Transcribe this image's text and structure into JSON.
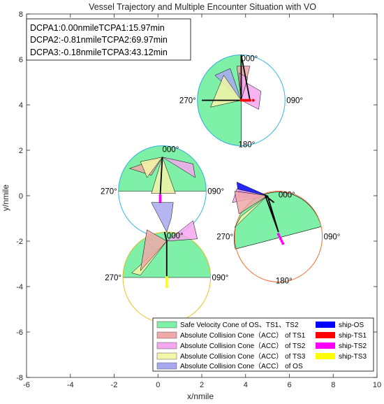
{
  "chart_data": {
    "type": "scatter",
    "title": "Vessel Trajectory and Multiple Encounter Situation with VO",
    "xlabel": "x/nmile",
    "ylabel": "y/nmile",
    "xlim": [
      -6,
      10
    ],
    "ylim": [
      -8,
      8
    ],
    "xticks": [
      -6,
      -4,
      -2,
      0,
      2,
      4,
      6,
      8,
      10
    ],
    "yticks": [
      -8,
      -6,
      -4,
      -2,
      0,
      2,
      4,
      6,
      8
    ],
    "grid": false,
    "legend_position": "bottom-right",
    "annotations": [
      "DCPA1:0.00nmileTCPA1:15.97min",
      "DCPA2:-0.81nmileTCPA2:69.97min",
      "DCPA3:-0.18nmileTCPA3:43.12min"
    ],
    "heading_labels": [
      "000°",
      "090°",
      "180°",
      "270°"
    ],
    "legend": [
      {
        "label": "Safe Velocity Cone of OS、TS1、TS2",
        "color": "#7ef0a8"
      },
      {
        "label": "Absolute Collision Cone（ACC） of TS1",
        "color": "#f0a8a8"
      },
      {
        "label": "Absolute Collision Cone（ACC） of TS2",
        "color": "#f5a8f0"
      },
      {
        "label": "Absolute Collision Cone（ACC） of TS3",
        "color": "#f5f5a8"
      },
      {
        "label": "Absolute Collision Cone（ACC） of OS",
        "color": "#a8a8f0"
      },
      {
        "label": "ship-OS",
        "color": "#0000ff"
      },
      {
        "label": "ship-TS1",
        "color": "#ff0000"
      },
      {
        "label": "ship-TS2",
        "color": "#ff00ff"
      },
      {
        "label": "ship-TS3",
        "color": "#ffff00"
      }
    ],
    "encounters": [
      {
        "name": "top",
        "center": [
          3.8,
          4.2
        ],
        "radius": 2.0,
        "ring_color": "#33b5e5",
        "safe_half": "left",
        "cones": [
          {
            "color": "#a8a8f0",
            "points": [
              [
                3.8,
                4.2
              ],
              [
                2.6,
                5.3
              ],
              [
                3.3,
                5.6
              ]
            ]
          },
          {
            "color": "#f5a8f0",
            "points": [
              [
                3.8,
                4.2
              ],
              [
                3.8,
                5.1
              ],
              [
                4.7,
                4.6
              ],
              [
                4.6,
                3.8
              ]
            ]
          },
          {
            "color": "#f5f5a8",
            "points": [
              [
                3.8,
                4.2
              ],
              [
                3.0,
                5.3
              ],
              [
                2.4,
                3.9
              ]
            ]
          },
          {
            "color": "#f0a8a8",
            "points": [
              [
                3.8,
                4.2
              ],
              [
                4.2,
                5.7
              ],
              [
                3.6,
                5.7
              ]
            ]
          },
          {
            "color": "#f5a8f0",
            "points": [
              [
                3.8,
                4.2
              ],
              [
                4.1,
                5.2
              ],
              [
                3.7,
                5.4
              ]
            ]
          }
        ],
        "ship_points": {
          "x": [
            3.8,
            3.9,
            4.0,
            4.1,
            4.2,
            4.35
          ],
          "y": [
            4.2,
            4.2,
            4.2,
            4.2,
            4.2,
            4.2
          ],
          "color": "#ff0000"
        },
        "track": {
          "x": [
            2.0,
            3.8,
            3.8,
            4.2
          ],
          "y": [
            4.2,
            4.2,
            6.2,
            4.2
          ]
        }
      },
      {
        "name": "middle-left",
        "center": [
          0.2,
          0.2
        ],
        "radius": 2.0,
        "ring_color": "#33b5e5",
        "safe_half": "top",
        "cones": [
          {
            "color": "#f0a8a8",
            "points": [
              [
                0.2,
                1.7
              ],
              [
                -1.3,
                1.2
              ],
              [
                -0.3,
                0.9
              ]
            ]
          },
          {
            "color": "#f5a8f0",
            "points": [
              [
                0.2,
                1.7
              ],
              [
                1.7,
                0.8
              ],
              [
                1.6,
                1.4
              ]
            ]
          },
          {
            "color": "#f5f5a8",
            "points": [
              [
                0.2,
                1.7
              ],
              [
                -0.3,
                0.1
              ],
              [
                0.8,
                0.1
              ]
            ]
          },
          {
            "color": "#f5f5a8",
            "points": [
              [
                0.2,
                1.7
              ],
              [
                -0.8,
                1.5
              ],
              [
                -0.5,
                0.8
              ]
            ]
          }
        ],
        "ship_points": {
          "x": [
            0.1,
            0.1,
            0.1,
            0.1
          ],
          "y": [
            0.0,
            -0.1,
            -0.2,
            -0.3
          ],
          "color": "#ff00ff"
        },
        "track": {
          "x": [
            0.1,
            0.2
          ],
          "y": [
            0.0,
            1.7
          ]
        }
      },
      {
        "name": "right",
        "center": [
          5.5,
          -1.8
        ],
        "radius": 2.0,
        "ring_color": "#f07030",
        "safe_half": "upper-tilted",
        "cones": [
          {
            "color": "#0000ff",
            "points": [
              [
                5.0,
                0.0
              ],
              [
                3.6,
                0.6
              ],
              [
                3.7,
                -0.1
              ]
            ]
          },
          {
            "color": "#f5a8f0",
            "points": [
              [
                5.0,
                0.0
              ],
              [
                3.4,
                -0.3
              ],
              [
                3.6,
                0.3
              ]
            ]
          },
          {
            "color": "#f0a8a8",
            "points": [
              [
                5.0,
                0.0
              ],
              [
                3.7,
                -0.8
              ],
              [
                3.5,
                0.2
              ]
            ]
          },
          {
            "color": "#f5f5a8",
            "points": [
              [
                5.0,
                0.0
              ],
              [
                3.5,
                -1.4
              ],
              [
                3.8,
                -0.9
              ]
            ]
          }
        ],
        "ship_points": {
          "x": [
            5.5,
            5.55,
            5.6,
            5.65,
            5.7
          ],
          "y": [
            -1.7,
            -1.8,
            -1.9,
            -2.0,
            -2.1
          ],
          "color": "#ff00ff"
        },
        "track": {
          "x": [
            5.0,
            5.5,
            4.9,
            5.3
          ],
          "y": [
            0.0,
            -1.6,
            0.0,
            -0.3
          ]
        }
      },
      {
        "name": "bottom",
        "center": [
          0.4,
          -3.6
        ],
        "radius": 2.0,
        "ring_color": "#e8c020",
        "safe_half": "top",
        "cones": [
          {
            "color": "#a8a8f0",
            "points": [
              [
                0.4,
                -1.6
              ],
              [
                -0.3,
                -0.3
              ],
              [
                0.7,
                -0.3
              ],
              [
                0.6,
                -1.0
              ]
            ]
          },
          {
            "color": "#f5a8f0",
            "points": [
              [
                0.4,
                -2.0
              ],
              [
                1.6,
                -1.1
              ],
              [
                1.8,
                -1.9
              ]
            ]
          },
          {
            "color": "#f5f5a8",
            "points": [
              [
                0.4,
                -2.0
              ],
              [
                -1.2,
                -3.4
              ],
              [
                -0.8,
                -3.5
              ]
            ]
          },
          {
            "color": "#f0a8a8",
            "points": [
              [
                0.4,
                -2.0
              ],
              [
                -0.5,
                -1.5
              ],
              [
                -0.8,
                -3.3
              ]
            ]
          }
        ],
        "ship_points": {
          "x": [
            0.4,
            0.4,
            0.4,
            0.4,
            0.4
          ],
          "y": [
            -3.6,
            -3.7,
            -3.8,
            -3.9,
            -4.0
          ],
          "color": "#ffff00"
        },
        "track": {
          "x": [
            0.4,
            0.4,
            0.3,
            0.4
          ],
          "y": [
            -3.6,
            -2.0,
            -1.6,
            -2.0
          ]
        }
      }
    ]
  }
}
